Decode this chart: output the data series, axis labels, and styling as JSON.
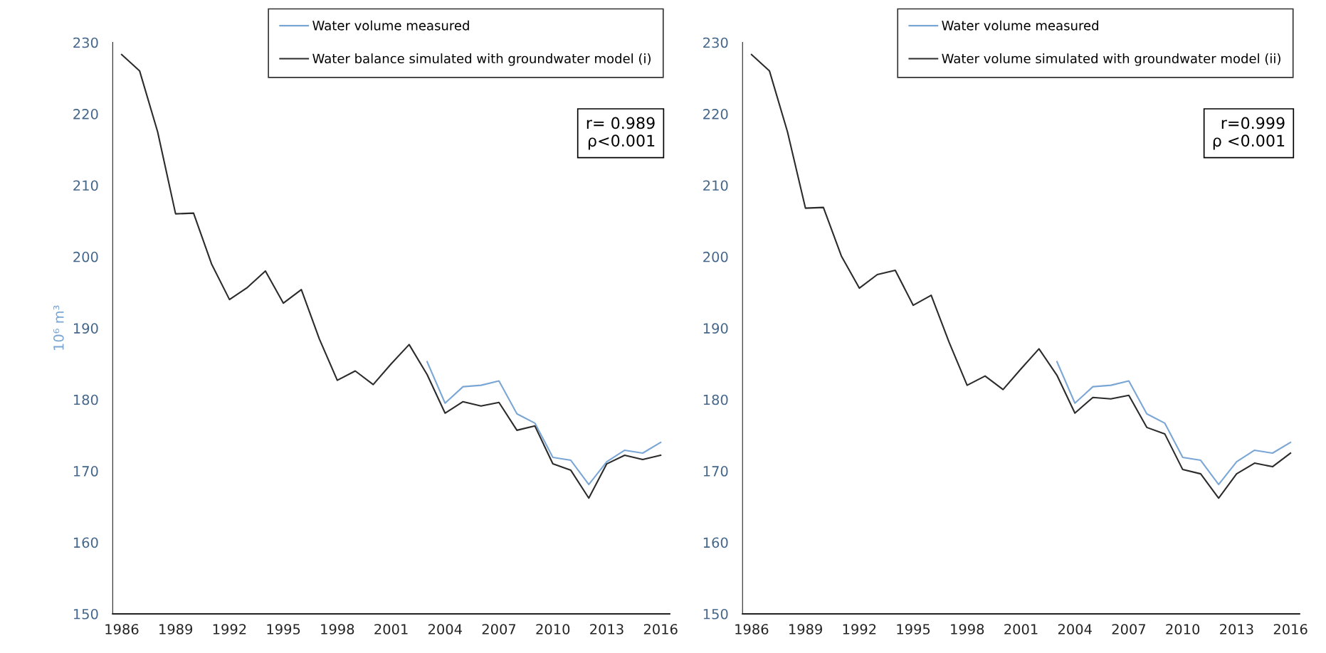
{
  "chart_data": [
    {
      "type": "line",
      "ylabel": "10⁶ m³",
      "x": [
        1986,
        1987,
        1988,
        1989,
        1990,
        1991,
        1992,
        1993,
        1994,
        1995,
        1996,
        1997,
        1998,
        1999,
        2000,
        2001,
        2002,
        2003,
        2004,
        2005,
        2006,
        2007,
        2008,
        2009,
        2010,
        2011,
        2012,
        2013,
        2014,
        2015,
        2016
      ],
      "series": [
        {
          "name": "Water volume measured",
          "color": "#7aa6d6",
          "values": [
            null,
            null,
            null,
            null,
            null,
            null,
            null,
            null,
            null,
            null,
            null,
            null,
            null,
            null,
            null,
            null,
            null,
            185.3,
            179.5,
            181.8,
            182,
            182.6,
            178,
            176.7,
            171.9,
            171.5,
            168.1,
            171.3,
            172.9,
            172.5,
            174
          ]
        },
        {
          "name": "Water balance simulated with groundwater model (i)",
          "color": "#2b2b2b",
          "values": [
            228.3,
            226,
            217.5,
            206,
            206.1,
            199,
            194,
            195.7,
            198,
            193.5,
            195.4,
            188.5,
            182.7,
            184,
            182.1,
            185,
            187.7,
            183.5,
            178.1,
            179.7,
            179.1,
            179.6,
            175.7,
            176.3,
            171,
            170.1,
            166.2,
            171,
            172.2,
            171.6,
            172.2
          ]
        }
      ],
      "xlim": [
        1985.5,
        2016.5
      ],
      "xticks": [
        1986,
        1989,
        1992,
        1995,
        1998,
        2001,
        2004,
        2007,
        2010,
        2013,
        2016
      ],
      "ylim": [
        150,
        230
      ],
      "yticks": [
        150,
        160,
        170,
        180,
        190,
        200,
        210,
        220,
        230
      ],
      "grid": false,
      "legend": "top right",
      "marker": "none",
      "line_style": "solid",
      "annotations": [
        "r= 0.989\nρ<0.001"
      ]
    },
    {
      "type": "line",
      "x": [
        1986,
        1987,
        1988,
        1989,
        1990,
        1991,
        1992,
        1993,
        1994,
        1995,
        1996,
        1997,
        1998,
        1999,
        2000,
        2001,
        2002,
        2003,
        2004,
        2005,
        2006,
        2007,
        2008,
        2009,
        2010,
        2011,
        2012,
        2013,
        2014,
        2015,
        2016
      ],
      "series": [
        {
          "name": "Water volume measured",
          "color": "#7aa6d6",
          "values": [
            null,
            null,
            null,
            null,
            null,
            null,
            null,
            null,
            null,
            null,
            null,
            null,
            null,
            null,
            null,
            null,
            null,
            185.3,
            179.5,
            181.8,
            182,
            182.6,
            178,
            176.7,
            171.9,
            171.5,
            168.1,
            171.3,
            172.9,
            172.5,
            174
          ]
        },
        {
          "name": "Water volume simulated with groundwater model (ii)",
          "color": "#2b2b2b",
          "values": [
            228.3,
            226,
            217.5,
            206.8,
            206.9,
            200.1,
            195.6,
            197.5,
            198.1,
            193.2,
            194.6,
            188,
            182,
            183.3,
            181.4,
            184.3,
            187.1,
            183.4,
            178.1,
            180.3,
            180.1,
            180.6,
            176.1,
            175.2,
            170.2,
            169.6,
            166.2,
            169.6,
            171.1,
            170.6,
            172.5
          ]
        }
      ],
      "xlim": [
        1985.5,
        2016.5
      ],
      "xticks": [
        1986,
        1989,
        1992,
        1995,
        1998,
        2001,
        2004,
        2007,
        2010,
        2013,
        2016
      ],
      "ylim": [
        150,
        230
      ],
      "yticks": [
        150,
        160,
        170,
        180,
        190,
        200,
        210,
        220,
        230
      ],
      "grid": false,
      "legend": "top right",
      "marker": "none",
      "line_style": "solid",
      "annotations": [
        "r=0.999\nρ <0.001"
      ]
    }
  ]
}
